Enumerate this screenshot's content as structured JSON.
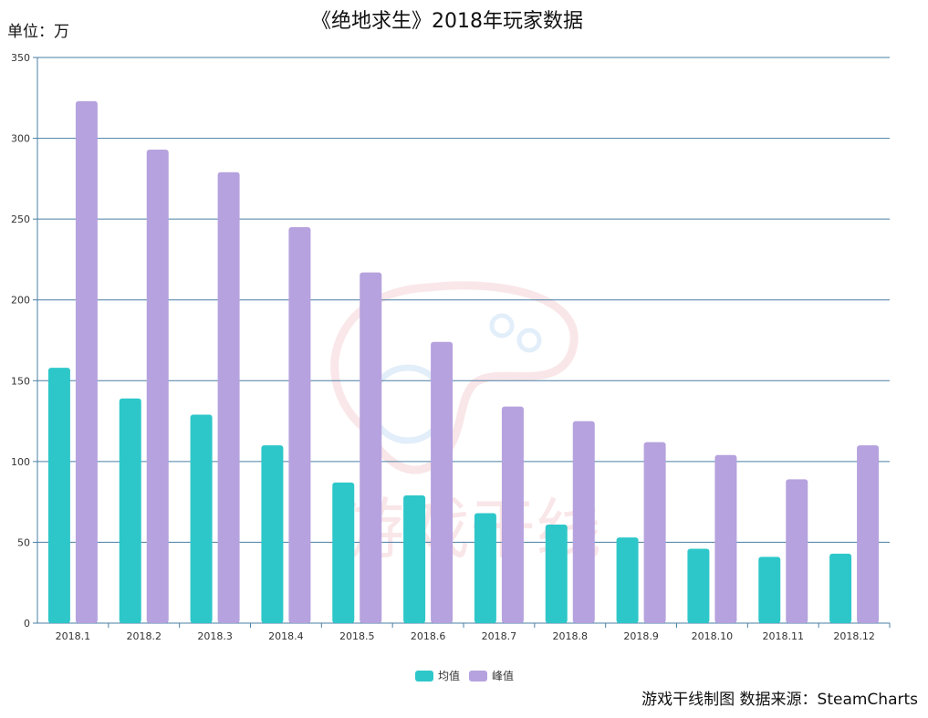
{
  "chart_data": {
    "type": "bar",
    "title": "《绝地求生》2018年玩家数据",
    "unit_label": "单位：万",
    "source_label": "游戏干线制图 数据来源：SteamCharts",
    "watermark_text": "游戏干线",
    "categories": [
      "2018.1",
      "2018.2",
      "2018.3",
      "2018.4",
      "2018.5",
      "2018.6",
      "2018.7",
      "2018.8",
      "2018.9",
      "2018.10",
      "2018.11",
      "2018.12"
    ],
    "series": [
      {
        "name": "均值",
        "color": "#2ec7c9",
        "values": [
          158,
          139,
          129,
          110,
          87,
          79,
          68,
          61,
          53,
          46,
          41,
          43
        ]
      },
      {
        "name": "峰值",
        "color": "#b6a2de",
        "values": [
          323,
          293,
          279,
          245,
          217,
          174,
          134,
          125,
          112,
          104,
          89,
          110
        ]
      }
    ],
    "ylim": [
      0,
      350
    ],
    "yticks": [
      "0",
      "50",
      "100",
      "150",
      "200",
      "250",
      "300",
      "350"
    ],
    "grid": true,
    "legend_position": "bottom-center"
  }
}
